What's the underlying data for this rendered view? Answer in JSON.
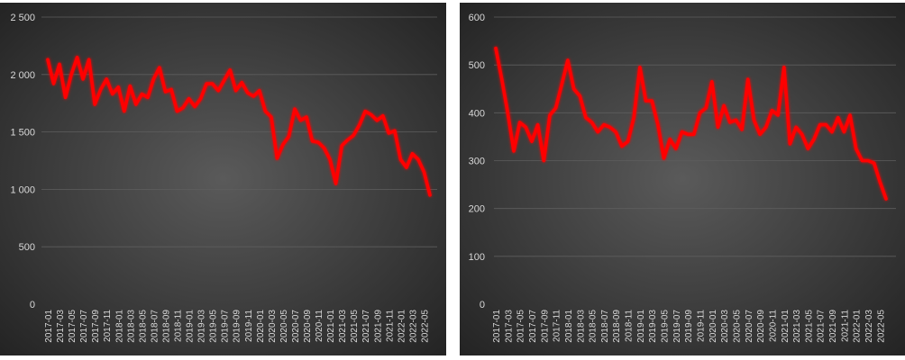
{
  "colors": {
    "line": "#ff0000",
    "background_center": "#5a5a5a",
    "background_edge": "#202020",
    "grid": "#5e5e5e",
    "text": "#d9d9d9"
  },
  "chart_data": [
    {
      "type": "line",
      "title": "",
      "xlabel": "",
      "ylabel": "",
      "grid": true,
      "ylim": [
        0,
        2500
      ],
      "yticks": [
        "0",
        "500",
        "1 000",
        "1 500",
        "2 000",
        "2 500"
      ],
      "ytick_values": [
        0,
        500,
        1000,
        1500,
        2000,
        2500
      ],
      "xtick_labels": [
        "2017-01",
        "2017-03",
        "2017-05",
        "2017-07",
        "2017-09",
        "2017-11",
        "2018-01",
        "2018-03",
        "2018-05",
        "2018-07",
        "2018-09",
        "2018-11",
        "2019-01",
        "2019-03",
        "2019-05",
        "2019-07",
        "2019-09",
        "2019-11",
        "2020-01",
        "2020-03",
        "2020-05",
        "2020-07",
        "2020-09",
        "2020-11",
        "2021-01",
        "2021-03",
        "2021-05",
        "2021-07",
        "2021-09",
        "2021-11",
        "2022-01",
        "2022-03",
        "2022-05"
      ],
      "series": [
        {
          "values": [
            2130,
            1920,
            2090,
            1800,
            2000,
            2150,
            1960,
            2130,
            1740,
            1870,
            1960,
            1830,
            1890,
            1680,
            1900,
            1740,
            1830,
            1800,
            1960,
            2060,
            1850,
            1870,
            1680,
            1710,
            1790,
            1720,
            1790,
            1920,
            1920,
            1860,
            1950,
            2040,
            1860,
            1930,
            1840,
            1810,
            1860,
            1680,
            1630,
            1270,
            1390,
            1460,
            1700,
            1600,
            1630,
            1420,
            1410,
            1360,
            1260,
            1050,
            1380,
            1430,
            1470,
            1560,
            1680,
            1650,
            1600,
            1640,
            1490,
            1510,
            1260,
            1190,
            1310,
            1260,
            1150,
            950
          ]
        }
      ]
    },
    {
      "type": "line",
      "title": "",
      "xlabel": "",
      "ylabel": "",
      "grid": true,
      "ylim": [
        0,
        600
      ],
      "yticks": [
        "0",
        "100",
        "200",
        "300",
        "400",
        "500",
        "600"
      ],
      "ytick_values": [
        0,
        100,
        200,
        300,
        400,
        500,
        600
      ],
      "xtick_labels": [
        "2017-01",
        "2017-03",
        "2017-05",
        "2017-07",
        "2017-09",
        "2017-11",
        "2018-01",
        "2018-03",
        "2018-05",
        "2018-07",
        "2018-09",
        "2018-11",
        "2019-01",
        "2019-03",
        "2019-05",
        "2019-07",
        "2019-09",
        "2019-11",
        "2020-01",
        "2020-03",
        "2020-05",
        "2020-07",
        "2020-09",
        "2020-11",
        "2021-01",
        "2021-03",
        "2021-05",
        "2021-07",
        "2021-09",
        "2021-11",
        "2022-01",
        "2022-03",
        "2022-05"
      ],
      "series": [
        {
          "values": [
            535,
            470,
            400,
            320,
            380,
            370,
            340,
            375,
            300,
            395,
            410,
            460,
            510,
            450,
            435,
            390,
            380,
            360,
            375,
            370,
            360,
            330,
            340,
            390,
            495,
            425,
            425,
            375,
            305,
            345,
            325,
            360,
            355,
            355,
            400,
            410,
            465,
            370,
            415,
            380,
            385,
            365,
            470,
            385,
            355,
            370,
            405,
            395,
            495,
            335,
            370,
            355,
            325,
            345,
            375,
            375,
            360,
            390,
            360,
            395,
            325,
            300,
            300,
            295,
            255,
            220
          ]
        }
      ]
    }
  ]
}
